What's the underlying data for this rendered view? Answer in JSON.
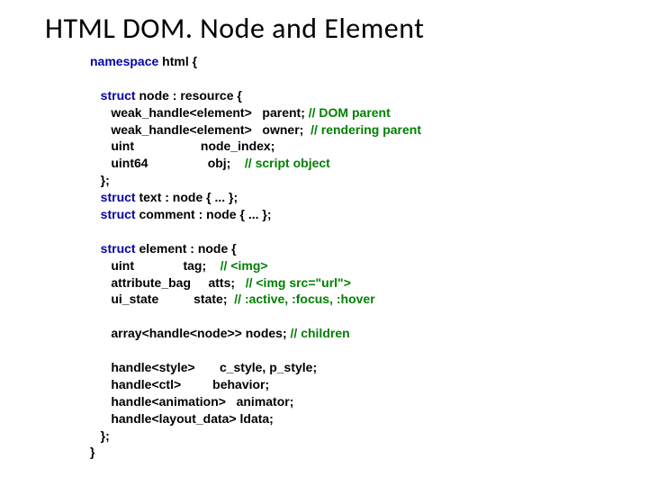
{
  "title": "HTML DOM. Node and Element",
  "code": {
    "kw_namespace": "namespace",
    "kw_struct": "struct",
    "t_html": " html {",
    "t_node": " node : resource {",
    "t_node_f1a": "      weak_handle<element>   parent; ",
    "t_node_f1c": "// DOM parent",
    "t_node_f2a": "      weak_handle<element>   owner;  ",
    "t_node_f2c": "// rendering parent",
    "t_node_f3": "      uint                   node_index;",
    "t_node_f4a": "      uint64                 obj;    ",
    "t_node_f4c": "// script object",
    "t_close1": "   };",
    "t_text": " text : node { ... };",
    "t_comment": " comment : node { ... };",
    "t_element": " element : node {",
    "t_el_f1a": "      uint              tag;    ",
    "t_el_f1c": "// <img>",
    "t_el_f2a": "      attribute_bag     atts;   ",
    "t_el_f2c": "// <img src=\"url\">",
    "t_el_f3a": "      ui_state          state;  ",
    "t_el_f3c": "// :active, :focus, :hover",
    "t_el_f4a": "      array<handle<node>> nodes; ",
    "t_el_f4c": "// children",
    "t_el_f5": "      handle<style>       c_style, p_style;",
    "t_el_f6": "      handle<ctl>         behavior;",
    "t_el_f7": "      handle<animation>   animator;",
    "t_el_f8": "      handle<layout_data> ldata;",
    "t_close2": "   };",
    "t_close3": "}"
  }
}
